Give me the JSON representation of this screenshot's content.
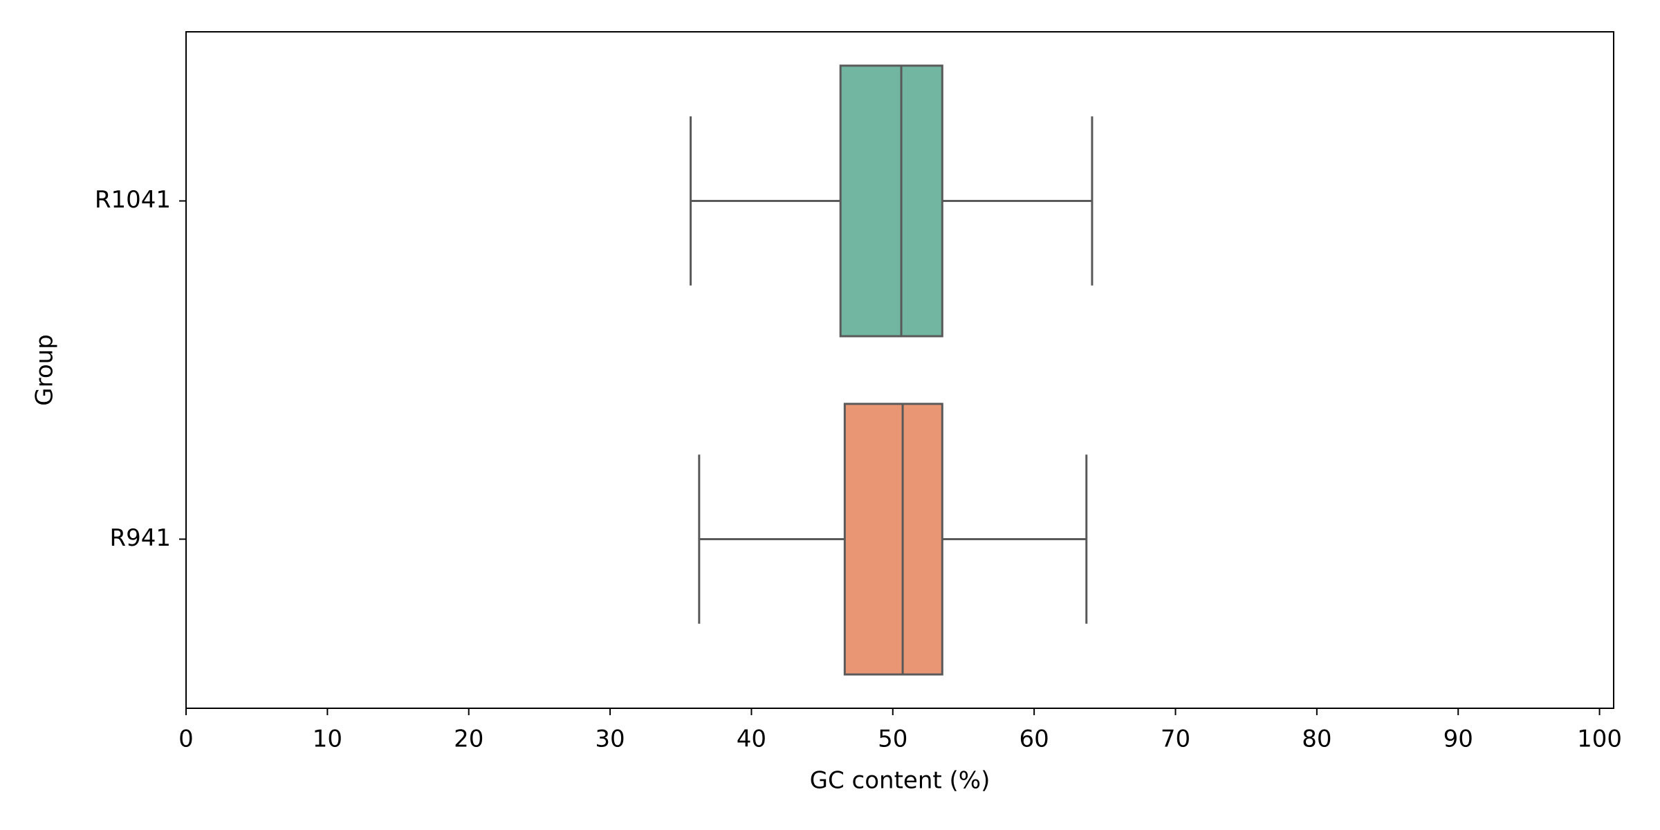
{
  "chart_data": {
    "type": "boxplot",
    "orientation": "horizontal",
    "x_label": "GC content (%)",
    "y_label": "Group",
    "categories": [
      "R1041",
      "R941"
    ],
    "boxes": [
      {
        "min": 35.7,
        "q1": 46.3,
        "median": 50.6,
        "q3": 53.5,
        "max": 64.1,
        "color": "#72b6a1"
      },
      {
        "min": 36.3,
        "q1": 46.6,
        "median": 50.7,
        "q3": 53.5,
        "max": 63.7,
        "color": "#e99675"
      }
    ],
    "line_color": "#595959",
    "xlim": [
      0,
      101
    ],
    "xticks": [
      0,
      10,
      20,
      30,
      40,
      50,
      60,
      70,
      80,
      90,
      100
    ]
  }
}
